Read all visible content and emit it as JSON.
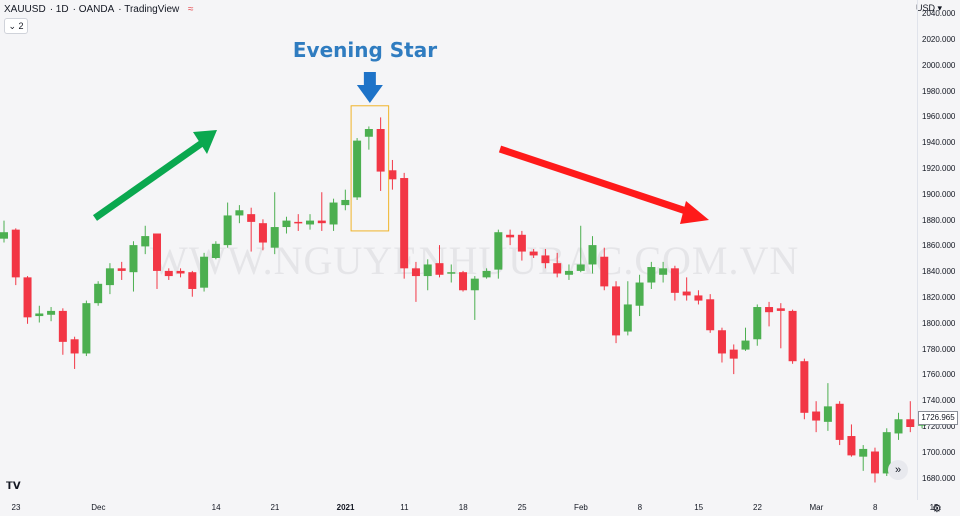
{
  "header": {
    "symbol": "XAUUSD",
    "interval": "1D",
    "broker": "OANDA",
    "platform": "TradingView",
    "collapse_label": "⌄ 2"
  },
  "currency": "USD ▾",
  "title": "Evening Star",
  "watermark": "WWW.NGUYENHUUBAC.COM.VN",
  "last_price": "1726.965",
  "colors": {
    "bull": "#4caf50",
    "bear": "#f23645",
    "annotation_title": "#2f7cc0",
    "arrow_up": "#0aa84f",
    "arrow_down": "#ff1a1a",
    "pattern_box": "#f0b429",
    "blue_arrow": "#1e73c8"
  },
  "chart_data": {
    "type": "candlestick",
    "ylim": [
      1670,
      2045
    ],
    "y_ticks": [
      "2040.000",
      "2020.000",
      "2000.000",
      "1980.000",
      "1960.000",
      "1940.000",
      "1920.000",
      "1900.000",
      "1880.000",
      "1860.000",
      "1840.000",
      "1820.000",
      "1800.000",
      "1780.000",
      "1760.000",
      "1740.000",
      "1720.000",
      "1700.000",
      "1680.000"
    ],
    "x_ticks": [
      {
        "label": "23",
        "i": 0
      },
      {
        "label": "Dec",
        "i": 7
      },
      {
        "label": "14",
        "i": 17
      },
      {
        "label": "21",
        "i": 22
      },
      {
        "label": "2021",
        "i": 28,
        "bold": true
      },
      {
        "label": "11",
        "i": 33
      },
      {
        "label": "18",
        "i": 38
      },
      {
        "label": "25",
        "i": 43
      },
      {
        "label": "Feb",
        "i": 48
      },
      {
        "label": "8",
        "i": 53
      },
      {
        "label": "15",
        "i": 58
      },
      {
        "label": "22",
        "i": 63
      },
      {
        "label": "Mar",
        "i": 68
      },
      {
        "label": "8",
        "i": 73
      },
      {
        "label": "15",
        "i": 78
      }
    ],
    "candles": [
      {
        "o": 1866,
        "c": 1871,
        "h": 1880,
        "l": 1863
      },
      {
        "o": 1873,
        "c": 1836,
        "h": 1874,
        "l": 1830
      },
      {
        "o": 1836,
        "c": 1805,
        "h": 1837,
        "l": 1800
      },
      {
        "o": 1806,
        "c": 1808,
        "h": 1814,
        "l": 1801
      },
      {
        "o": 1807,
        "c": 1810,
        "h": 1813,
        "l": 1802
      },
      {
        "o": 1810,
        "c": 1786,
        "h": 1812,
        "l": 1776
      },
      {
        "o": 1788,
        "c": 1777,
        "h": 1790,
        "l": 1765
      },
      {
        "o": 1777,
        "c": 1816,
        "h": 1818,
        "l": 1775
      },
      {
        "o": 1816,
        "c": 1831,
        "h": 1833,
        "l": 1814
      },
      {
        "o": 1830,
        "c": 1843,
        "h": 1847,
        "l": 1823
      },
      {
        "o": 1843,
        "c": 1841,
        "h": 1848,
        "l": 1834
      },
      {
        "o": 1840,
        "c": 1861,
        "h": 1864,
        "l": 1825
      },
      {
        "o": 1860,
        "c": 1868,
        "h": 1876,
        "l": 1854
      },
      {
        "o": 1870,
        "c": 1841,
        "h": 1870,
        "l": 1827
      },
      {
        "o": 1841,
        "c": 1837,
        "h": 1843,
        "l": 1834
      },
      {
        "o": 1841,
        "c": 1839,
        "h": 1843,
        "l": 1836
      },
      {
        "o": 1840,
        "c": 1827,
        "h": 1841,
        "l": 1821
      },
      {
        "o": 1828,
        "c": 1852,
        "h": 1855,
        "l": 1825
      },
      {
        "o": 1851,
        "c": 1862,
        "h": 1864,
        "l": 1850
      },
      {
        "o": 1861,
        "c": 1884,
        "h": 1894,
        "l": 1859
      },
      {
        "o": 1884,
        "c": 1888,
        "h": 1892,
        "l": 1878
      },
      {
        "o": 1885,
        "c": 1879,
        "h": 1890,
        "l": 1856
      },
      {
        "o": 1878,
        "c": 1863,
        "h": 1881,
        "l": 1857
      },
      {
        "o": 1859,
        "c": 1875,
        "h": 1902,
        "l": 1854
      },
      {
        "o": 1875,
        "c": 1880,
        "h": 1883,
        "l": 1870
      },
      {
        "o": 1879,
        "c": 1878,
        "h": 1885,
        "l": 1872
      },
      {
        "o": 1877,
        "c": 1880,
        "h": 1885,
        "l": 1873
      },
      {
        "o": 1880,
        "c": 1878,
        "h": 1902,
        "l": 1872
      },
      {
        "o": 1877,
        "c": 1894,
        "h": 1897,
        "l": 1872
      },
      {
        "o": 1892,
        "c": 1896,
        "h": 1904,
        "l": 1888
      },
      {
        "o": 1898,
        "c": 1942,
        "h": 1944,
        "l": 1896
      },
      {
        "o": 1945,
        "c": 1951,
        "h": 1953,
        "l": 1935
      },
      {
        "o": 1951,
        "c": 1918,
        "h": 1960,
        "l": 1903
      },
      {
        "o": 1919,
        "c": 1912,
        "h": 1927,
        "l": 1904
      },
      {
        "o": 1913,
        "c": 1843,
        "h": 1917,
        "l": 1835
      },
      {
        "o": 1843,
        "c": 1837,
        "h": 1848,
        "l": 1817
      },
      {
        "o": 1837,
        "c": 1846,
        "h": 1850,
        "l": 1826
      },
      {
        "o": 1847,
        "c": 1838,
        "h": 1861,
        "l": 1836
      },
      {
        "o": 1839,
        "c": 1840,
        "h": 1846,
        "l": 1832
      },
      {
        "o": 1840,
        "c": 1826,
        "h": 1841,
        "l": 1825
      },
      {
        "o": 1826,
        "c": 1835,
        "h": 1837,
        "l": 1803
      },
      {
        "o": 1836,
        "c": 1841,
        "h": 1843,
        "l": 1835
      },
      {
        "o": 1842,
        "c": 1871,
        "h": 1873,
        "l": 1835
      },
      {
        "o": 1869,
        "c": 1867,
        "h": 1873,
        "l": 1861
      },
      {
        "o": 1869,
        "c": 1856,
        "h": 1872,
        "l": 1849
      },
      {
        "o": 1856,
        "c": 1853,
        "h": 1858,
        "l": 1851
      },
      {
        "o": 1853,
        "c": 1847,
        "h": 1858,
        "l": 1843
      },
      {
        "o": 1847,
        "c": 1839,
        "h": 1855,
        "l": 1836
      },
      {
        "o": 1838,
        "c": 1841,
        "h": 1846,
        "l": 1834
      },
      {
        "o": 1841,
        "c": 1846,
        "h": 1876,
        "l": 1840
      },
      {
        "o": 1846,
        "c": 1861,
        "h": 1868,
        "l": 1839
      },
      {
        "o": 1852,
        "c": 1829,
        "h": 1859,
        "l": 1826
      },
      {
        "o": 1829,
        "c": 1791,
        "h": 1833,
        "l": 1785
      },
      {
        "o": 1794,
        "c": 1815,
        "h": 1833,
        "l": 1791
      },
      {
        "o": 1814,
        "c": 1832,
        "h": 1838,
        "l": 1806
      },
      {
        "o": 1832,
        "c": 1844,
        "h": 1848,
        "l": 1827
      },
      {
        "o": 1838,
        "c": 1843,
        "h": 1848,
        "l": 1832
      },
      {
        "o": 1843,
        "c": 1824,
        "h": 1845,
        "l": 1818
      },
      {
        "o": 1825,
        "c": 1822,
        "h": 1836,
        "l": 1818
      },
      {
        "o": 1822,
        "c": 1818,
        "h": 1826,
        "l": 1815
      },
      {
        "o": 1819,
        "c": 1795,
        "h": 1823,
        "l": 1793
      },
      {
        "o": 1795,
        "c": 1777,
        "h": 1797,
        "l": 1770
      },
      {
        "o": 1780,
        "c": 1773,
        "h": 1784,
        "l": 1761
      },
      {
        "o": 1780,
        "c": 1787,
        "h": 1797,
        "l": 1779
      },
      {
        "o": 1788,
        "c": 1813,
        "h": 1815,
        "l": 1783
      },
      {
        "o": 1813,
        "c": 1809,
        "h": 1817,
        "l": 1798
      },
      {
        "o": 1812,
        "c": 1810,
        "h": 1816,
        "l": 1781
      },
      {
        "o": 1810,
        "c": 1771,
        "h": 1811,
        "l": 1769
      },
      {
        "o": 1771,
        "c": 1731,
        "h": 1773,
        "l": 1726
      },
      {
        "o": 1732,
        "c": 1725,
        "h": 1740,
        "l": 1716
      },
      {
        "o": 1724,
        "c": 1736,
        "h": 1754,
        "l": 1717
      },
      {
        "o": 1738,
        "c": 1710,
        "h": 1740,
        "l": 1706
      },
      {
        "o": 1713,
        "c": 1698,
        "h": 1722,
        "l": 1697
      },
      {
        "o": 1697,
        "c": 1703,
        "h": 1706,
        "l": 1686
      },
      {
        "o": 1701,
        "c": 1684,
        "h": 1704,
        "l": 1677
      },
      {
        "o": 1684,
        "c": 1716,
        "h": 1719,
        "l": 1682
      },
      {
        "o": 1715,
        "c": 1726,
        "h": 1731,
        "l": 1710
      },
      {
        "o": 1726,
        "c": 1720,
        "h": 1740,
        "l": 1716
      },
      {
        "o": 1721,
        "c": 1727,
        "h": 1730,
        "l": 1719
      }
    ]
  }
}
